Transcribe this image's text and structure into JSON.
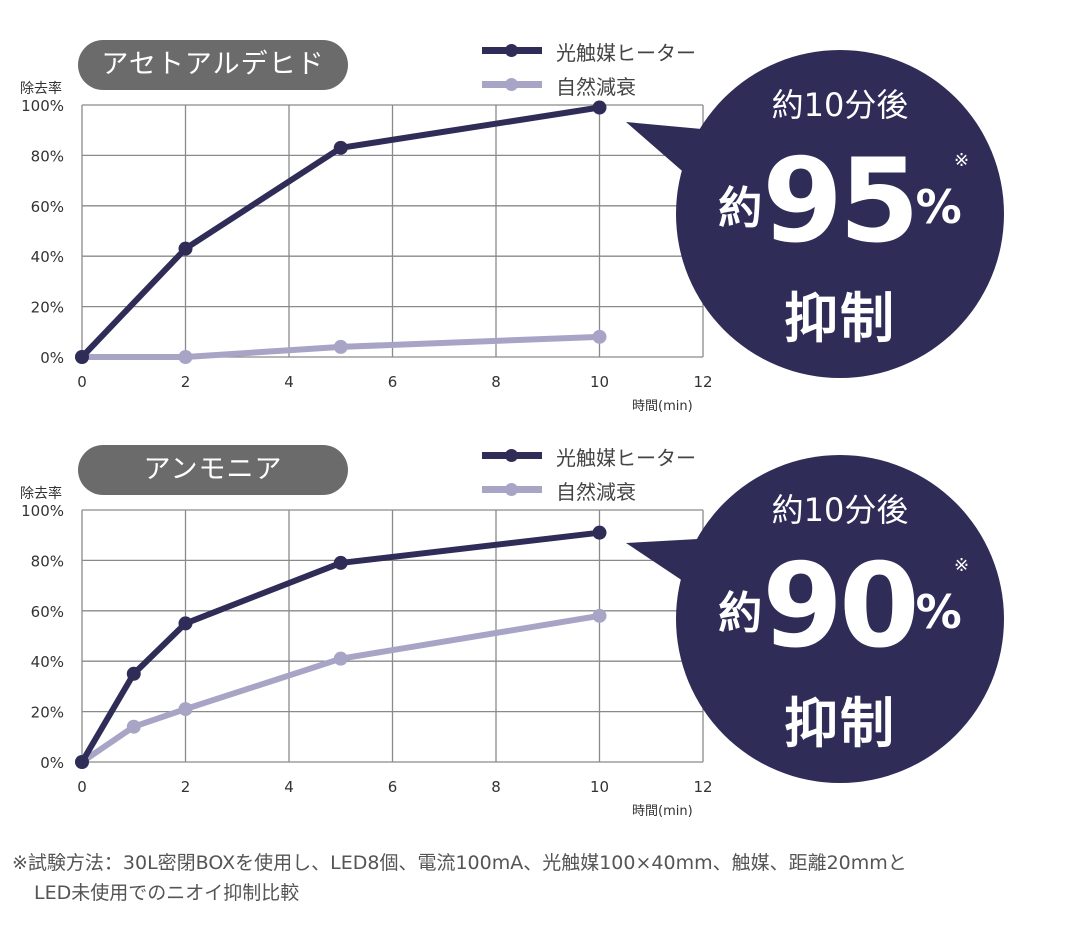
{
  "colors": {
    "series_photocatalyst": "#2f2c58",
    "series_natural": "#a8a4c6",
    "grid": "#8a8a8a",
    "pill_bg": "#6b6b6b",
    "callout_bg": "#2f2c58"
  },
  "chart_data": [
    {
      "type": "line",
      "title": "アセトアルデヒド",
      "ylabel": "除去率",
      "xlabel": "時間(min)",
      "xlim": [
        0,
        12
      ],
      "ylim": [
        0,
        100
      ],
      "x_ticks": [
        "0",
        "2",
        "4",
        "6",
        "8",
        "10",
        "12"
      ],
      "y_ticks": [
        "0%",
        "20%",
        "40%",
        "60%",
        "80%",
        "100%"
      ],
      "grid": true,
      "legend_position": "top-right",
      "series": [
        {
          "name": "光触媒ヒーター",
          "x": [
            0,
            2,
            5,
            10
          ],
          "y": [
            0,
            43,
            83,
            99
          ]
        },
        {
          "name": "自然減衰",
          "x": [
            0,
            2,
            5,
            10
          ],
          "y": [
            0,
            0,
            4,
            8
          ]
        }
      ],
      "callout": {
        "head": "約10分後",
        "prefix": "約",
        "value": "95",
        "unit": "%",
        "mark": "※",
        "tail": "抑制"
      }
    },
    {
      "type": "line",
      "title": "アンモニア",
      "ylabel": "除去率",
      "xlabel": "時間(min)",
      "xlim": [
        0,
        12
      ],
      "ylim": [
        0,
        100
      ],
      "x_ticks": [
        "0",
        "2",
        "4",
        "6",
        "8",
        "10",
        "12"
      ],
      "y_ticks": [
        "0%",
        "20%",
        "40%",
        "60%",
        "80%",
        "100%"
      ],
      "grid": true,
      "legend_position": "top-right",
      "series": [
        {
          "name": "光触媒ヒーター",
          "x": [
            0,
            1,
            2,
            5,
            10
          ],
          "y": [
            0,
            35,
            55,
            79,
            91
          ]
        },
        {
          "name": "自然減衰",
          "x": [
            0,
            1,
            2,
            5,
            10
          ],
          "y": [
            0,
            14,
            21,
            41,
            58
          ]
        }
      ],
      "callout": {
        "head": "約10分後",
        "prefix": "約",
        "value": "90",
        "unit": "%",
        "mark": "※",
        "tail": "抑制"
      }
    }
  ],
  "footnote": {
    "line1": "※試験方法：30L密閉BOXを使用し、LED8個、電流100mA、光触媒100×40mm、触媒、距離20mmと",
    "line2": "LED未使用でのニオイ抑制比較"
  }
}
